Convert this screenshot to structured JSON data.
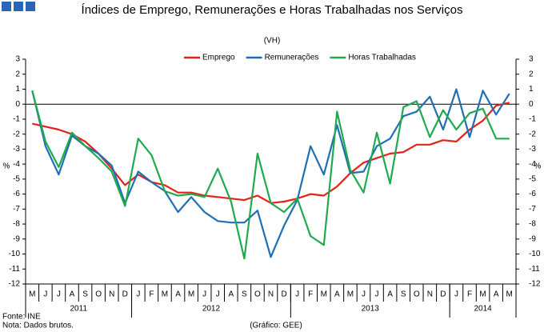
{
  "chart_data": {
    "type": "line",
    "title": "Índices de Emprego, Remunerações e Horas Trabalhadas nos Serviços",
    "subtitle": "(VH)",
    "y_label": "%",
    "y2_label": "%",
    "source": "Fonte: INE",
    "note": "Nota: Dados brutos.",
    "credit": "(Gráfico: GEE)",
    "categories": [
      "M",
      "J",
      "J",
      "A",
      "S",
      "O",
      "N",
      "D",
      "J",
      "F",
      "M",
      "A",
      "M",
      "J",
      "J",
      "A",
      "S",
      "O",
      "N",
      "D",
      "J",
      "F",
      "M",
      "A",
      "M",
      "J",
      "J",
      "A",
      "S",
      "O",
      "N",
      "D",
      "J",
      "F",
      "M",
      "A",
      "M"
    ],
    "year_groups": [
      {
        "label": "2011",
        "count": 8
      },
      {
        "label": "2012",
        "count": 12
      },
      {
        "label": "2013",
        "count": 12
      },
      {
        "label": "2014",
        "count": 5
      }
    ],
    "ylim": [
      -12,
      3
    ],
    "yticks": [
      -12,
      -11,
      -10,
      -9,
      -8,
      -7,
      -6,
      -5,
      -4,
      -3,
      -2,
      -1,
      0,
      1,
      2,
      3
    ],
    "y2lim": [
      -12,
      3
    ],
    "y2ticks": [
      -12,
      -11,
      -10,
      -9,
      -8,
      -7,
      -6,
      -5,
      -4,
      -3,
      -2,
      -1,
      0,
      1,
      2,
      3
    ],
    "legend": "top",
    "series": [
      {
        "name": "Emprego",
        "color": "#e2231a",
        "values": [
          -1.3,
          -1.5,
          -1.7,
          -2.0,
          -2.5,
          -3.3,
          -4.3,
          -5.4,
          -4.7,
          -5.2,
          -5.4,
          -5.9,
          -5.9,
          -6.1,
          -6.2,
          -6.3,
          -6.4,
          -6.1,
          -6.6,
          -6.5,
          -6.3,
          -6.0,
          -6.1,
          -5.5,
          -4.6,
          -3.9,
          -3.6,
          -3.3,
          -3.2,
          -2.7,
          -2.7,
          -2.4,
          -2.5,
          -1.7,
          -1.1,
          -0.1,
          0.1
        ]
      },
      {
        "name": "Remunerações",
        "color": "#1f6fb4",
        "values": [
          0.9,
          -2.8,
          -4.7,
          -2.1,
          -2.8,
          -3.3,
          -4.1,
          -6.6,
          -4.5,
          -5.2,
          -5.8,
          -7.2,
          -6.2,
          -7.2,
          -7.8,
          -7.9,
          -7.9,
          -7.1,
          -10.2,
          -8.1,
          -6.4,
          -2.8,
          -4.7,
          -1.4,
          -4.6,
          -4.5,
          -2.8,
          -2.3,
          -0.8,
          -0.5,
          0.5,
          -1.7,
          1.0,
          -2.2,
          0.9,
          -0.7,
          0.7
        ]
      },
      {
        "name": "Horas Trabalhadas",
        "color": "#1faa4f",
        "values": [
          0.9,
          -2.5,
          -4.2,
          -1.9,
          -2.8,
          -3.6,
          -4.5,
          -6.8,
          -2.3,
          -3.4,
          -5.8,
          -6.1,
          -6.0,
          -6.2,
          -4.3,
          -6.5,
          -10.3,
          -3.3,
          -6.6,
          -7.2,
          -6.3,
          -8.8,
          -9.4,
          -0.5,
          -4.4,
          -5.9,
          -1.9,
          -5.3,
          -0.2,
          0.2,
          -2.2,
          -0.4,
          -1.7,
          -0.6,
          -0.3,
          -2.3,
          -2.3
        ]
      }
    ]
  }
}
